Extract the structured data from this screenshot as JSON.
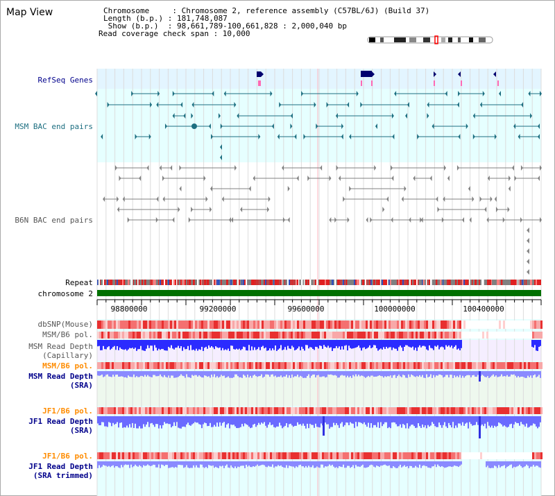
{
  "title": "Map View",
  "info": {
    "chromosome": "Chromosome     : Chromosome 2, reference assembly (C57BL/6J) (Build 37)",
    "length": "Length (b.p.) : 181,748,087",
    "show": " Show (b.p.)  : 98,661,789-100,661,828 : 2,000,040 bp",
    "read_coverage": "Read coverage check span : 10,000"
  },
  "tracks": {
    "refseq": "RefSeq Genes",
    "msm_bac": "MSM BAC end pairs",
    "b6n_bac": "B6N BAC end pairs",
    "repeat": "Repeat",
    "chromosome": "chromosome 2",
    "dbsnp": "dbSNP(Mouse)",
    "msm_b6_pol_1": "MSM/B6 pol.",
    "msm_read_depth_cap_1": "MSM Read Depth",
    "msm_read_depth_cap_2": "(Capillary)",
    "msm_b6_pol_2": "MSM/B6 pol.",
    "msm_read_depth_sra_1": "MSM Read Depth",
    "msm_read_depth_sra_2": "(SRA)",
    "jf1_b6_pol_1": "JF1/B6 pol.",
    "jf1_read_depth_1": "JF1 Read Depth",
    "jf1_read_depth_2": "(SRA)",
    "jf1_b6_pol_2": "JF1/B6 pol.",
    "jf1_read_depth_trim_1": "JF1 Read Depth",
    "jf1_read_depth_trim_2": "(SRA trimmed)"
  },
  "axis_ticks": [
    "98800000",
    "99200000",
    "99600000",
    "100000000",
    "100400000"
  ],
  "colors": {
    "refseq_bg": "#e3f5ff",
    "msm_bg": "#e6ffff",
    "teal": "#1c6e80",
    "gray": "#808080",
    "chromosome": "#007000",
    "navy": "#00006e",
    "label_blue": "#00008b",
    "label_orange": "#ff8c00",
    "depth_blue": "#2b2bff",
    "depth_light": "#7b7bff"
  }
}
